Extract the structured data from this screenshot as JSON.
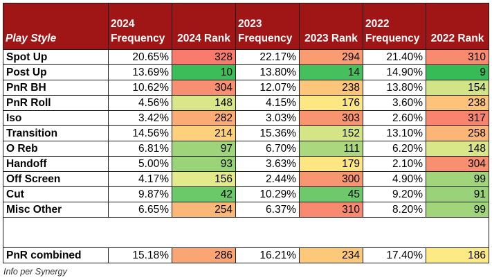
{
  "header": {
    "play_style": "Play Style",
    "freq_2024": [
      "2024",
      "Frequency"
    ],
    "rank_2024": "2024 Rank",
    "freq_2023": [
      "2023",
      "Frequency"
    ],
    "rank_2023": "2023 Rank",
    "freq_2022": [
      "2022",
      "Frequency"
    ],
    "rank_2022": "2022 Rank"
  },
  "rows": [
    {
      "label": "Spot Up",
      "f2024": "20.65%",
      "r2024": "328",
      "c2024": "#f87b6e",
      "f2023": "22.17%",
      "r2023": "294",
      "c2023": "#f99c72",
      "f2022": "21.40%",
      "r2022": "310",
      "c2022": "#f88a70"
    },
    {
      "label": "Post Up",
      "f2024": "13.69%",
      "r2024": "10",
      "c2024": "#3cbd5a",
      "f2023": "13.80%",
      "r2023": "14",
      "c2023": "#45c05c",
      "f2022": "14.90%",
      "r2022": "9",
      "c2022": "#37bb57"
    },
    {
      "label": "PnR BH",
      "f2024": "10.62%",
      "r2024": "304",
      "c2024": "#f98f71",
      "f2023": "12.07%",
      "r2023": "238",
      "c2023": "#fcc57a",
      "f2022": "13.80%",
      "r2022": "154",
      "c2022": "#d2e486"
    },
    {
      "label": "PnR Roll",
      "f2024": "4.56%",
      "r2024": "148",
      "c2024": "#d9e788",
      "f2023": "4.15%",
      "r2023": "176",
      "c2023": "#fde783",
      "f2022": "3.60%",
      "r2022": "238",
      "c2022": "#fcc47a"
    },
    {
      "label": "Iso",
      "f2024": "3.42%",
      "r2024": "282",
      "c2024": "#fbab75",
      "f2023": "3.03%",
      "r2023": "303",
      "c2023": "#f99471",
      "f2022": "2.60%",
      "r2022": "317",
      "c2022": "#f8836f"
    },
    {
      "label": "Transition",
      "f2024": "14.56%",
      "r2024": "214",
      "c2024": "#fdd07c",
      "f2023": "15.36%",
      "r2023": "152",
      "c2023": "#d4e586",
      "f2022": "13.10%",
      "r2022": "258",
      "c2022": "#fbb577"
    },
    {
      "label": "O Reb",
      "f2024": "6.81%",
      "r2024": "97",
      "c2024": "#9fd47a",
      "f2023": "6.70%",
      "r2023": "111",
      "c2023": "#acd87d",
      "f2022": "6.20%",
      "r2022": "148",
      "c2022": "#d9e788"
    },
    {
      "label": "Handoff",
      "f2024": "5.00%",
      "r2024": "93",
      "c2024": "#9bd379",
      "f2023": "3.63%",
      "r2023": "179",
      "c2023": "#fee683",
      "f2022": "2.10%",
      "r2022": "304",
      "c2022": "#f98f71"
    },
    {
      "label": "Off Screen",
      "f2024": "4.17%",
      "r2024": "156",
      "c2024": "#e3ea8a",
      "f2023": "2.44%",
      "r2023": "300",
      "c2023": "#f99672",
      "f2022": "4.90%",
      "r2022": "99",
      "c2022": "#a2d57b"
    },
    {
      "label": "Cut",
      "f2024": "9.87%",
      "r2024": "42",
      "c2024": "#6bc96a",
      "f2023": "10.29%",
      "r2023": "45",
      "c2023": "#6ec96b",
      "f2022": "9.20%",
      "r2022": "91",
      "c2022": "#99d279"
    },
    {
      "label": "Misc Other",
      "f2024": "6.65%",
      "r2024": "254",
      "c2024": "#fbb777",
      "f2023": "6.37%",
      "r2023": "310",
      "c2023": "#f88a70",
      "f2022": "8.20%",
      "r2022": "99",
      "c2022": "#a2d57b"
    }
  ],
  "combined": {
    "label": "PnR combined",
    "f2024": "15.18%",
    "r2024": "286",
    "c2024": "#faa574",
    "f2023": "16.21%",
    "r2023": "234",
    "c2023": "#fcc87a",
    "f2022": "17.40%",
    "r2022": "186",
    "c2022": "#feea84"
  },
  "footnote": "Info per Synergy"
}
